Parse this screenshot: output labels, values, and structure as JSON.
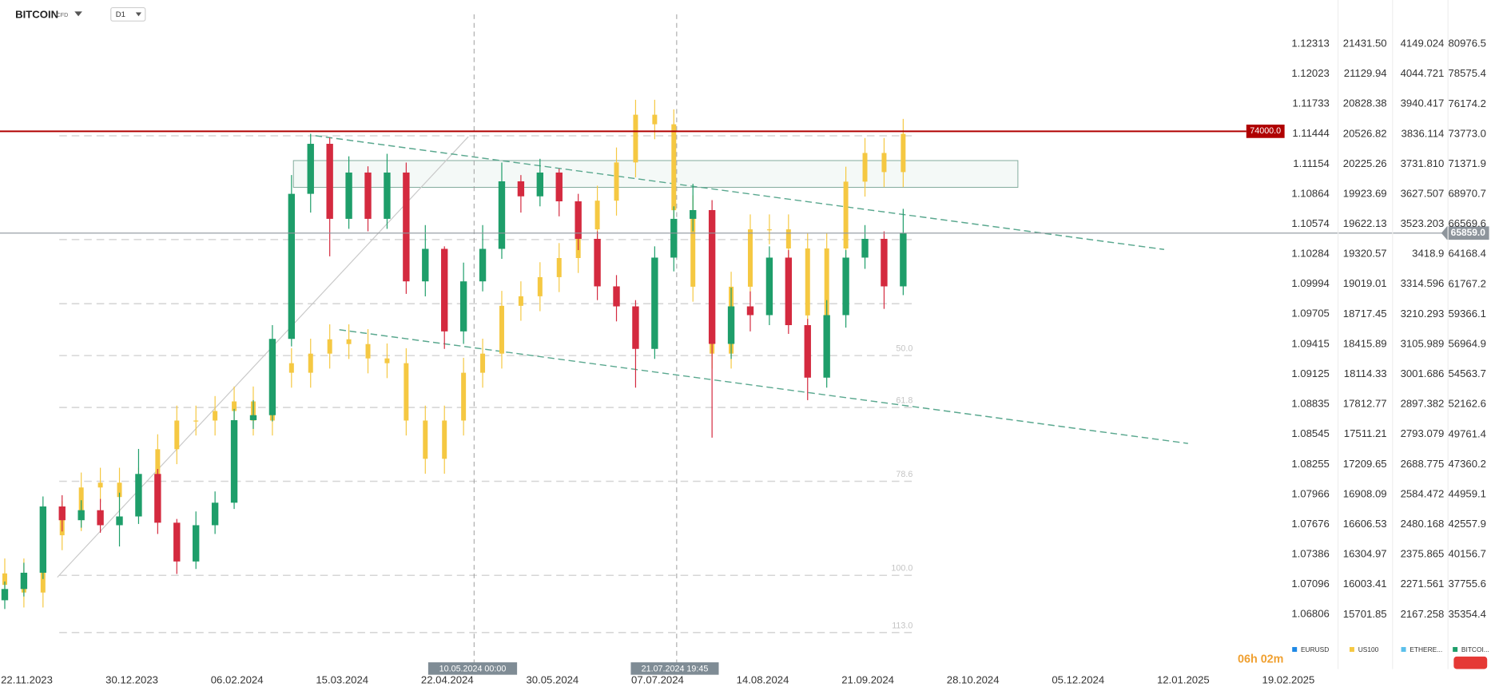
{
  "chart_data": {
    "type": "candlestick",
    "title": "BITCOIN",
    "instrument_type": "CFD",
    "interval": "D1",
    "countdown": "06h 02m",
    "xticks": [
      "22.11.2023",
      "30.12.2023",
      "06.02.2024",
      "15.03.2024",
      "22.04.2024",
      "30.05.2024",
      "07.07.2024",
      "14.08.2024",
      "21.09.2024",
      "28.10.2024",
      "05.12.2024",
      "12.01.2025",
      "19.02.2025"
    ],
    "crosshair_labels": [
      "10.05.2024 00:00",
      "21.07.2024 19:45"
    ],
    "y_axes": [
      {
        "name": "EURUSD",
        "color": "#1e88e5",
        "ylim": [
          1.0628,
          1.12737
        ],
        "yticks": [
          1.12313,
          1.12023,
          1.11733,
          1.11444,
          1.11154,
          1.10864,
          1.10574,
          1.10284,
          1.09994,
          1.09705,
          1.09415,
          1.09125,
          1.08835,
          1.08545,
          1.08255,
          1.07966,
          1.07676,
          1.07386,
          1.07096,
          1.06806
        ]
      },
      {
        "name": "US100",
        "color": "#f5c842",
        "ylim": [
          15155,
          21873
        ],
        "yticks": [
          {
            "value": 21431.5,
            "label": "21431.50"
          },
          21129.94,
          20828.38,
          20526.82,
          20225.26,
          19923.69,
          19622.13,
          19320.57,
          19019.01,
          18717.45,
          18415.89,
          18114.33,
          17812.77,
          17511.21,
          17209.65,
          16908.09,
          16606.53,
          16304.97,
          16003.41,
          15701.85
        ]
      },
      {
        "name": "ETHERE...",
        "color": "#5bc0eb",
        "ylim": [
          1978.1,
          4301.7
        ],
        "yticks": [
          4149.024,
          4044.721,
          3940.417,
          3836.114,
          {
            "value": 3731.81,
            "label": "3731.810"
          },
          3627.507,
          3523.203,
          3418.9,
          3314.596,
          3210.293,
          3105.989,
          3001.686,
          2897.382,
          2793.079,
          2688.775,
          2584.472,
          2480.168,
          2375.865,
          2271.561,
          2167.258
        ]
      },
      {
        "name": "BITCOI...",
        "color": "#1e9e6a",
        "ylim": [
          31000,
          84500
        ],
        "yticks": [
          80976.5,
          78575.4,
          76174.2,
          {
            "value": 73773,
            "label": "73773.0"
          },
          71371.9,
          68970.7,
          66569.6,
          64168.4,
          61767.2,
          59366.1,
          56964.9,
          54563.7,
          52162.6,
          49761.4,
          47360.2,
          44959.1,
          42557.9,
          40156.7,
          37755.6,
          35354.4
        ]
      }
    ],
    "series": [
      {
        "axis": 1,
        "color": "#f5c842",
        "open": [
          16000,
          16115,
          15923,
          16498,
          16690,
          16978,
          17026,
          16882,
          17026,
          17362,
          17650,
          17650,
          17746,
          17842,
          17650,
          18226,
          18130,
          18322,
          18466,
          18418,
          18274,
          18226,
          17650,
          17266,
          17650,
          18130,
          18322,
          18802,
          18898,
          19090,
          19282,
          19570,
          19858,
          20242,
          20721,
          20625,
          19762,
          18994,
          18322,
          18994,
          19570,
          19570,
          19378,
          18706,
          19378,
          20049,
          20337,
          20145
        ],
        "high": [
          16265,
          16265,
          16648,
          16840,
          17128,
          17176,
          17176,
          17176,
          17512,
          17800,
          17800,
          17896,
          17992,
          17992,
          18376,
          18376,
          18472,
          18616,
          18616,
          18568,
          18424,
          18376,
          17800,
          17800,
          18280,
          18472,
          18952,
          19048,
          19240,
          19432,
          19720,
          20008,
          20392,
          20871,
          20871,
          20775,
          19912,
          19144,
          19144,
          19720,
          19720,
          19720,
          19528,
          19528,
          20199,
          20487,
          20487,
          20679
        ],
        "low": [
          15850,
          15773,
          15773,
          16348,
          16540,
          16828,
          16732,
          16732,
          16876,
          17212,
          17500,
          17500,
          17596,
          17500,
          17500,
          17980,
          17980,
          18172,
          18268,
          18124,
          18076,
          17500,
          17116,
          17116,
          17500,
          17980,
          18172,
          18652,
          18748,
          18940,
          19132,
          19420,
          19708,
          20092,
          20475,
          19612,
          18844,
          18172,
          18172,
          18844,
          19420,
          19228,
          18556,
          18556,
          19228,
          19899,
          19995,
          19995
        ],
        "close": [
          16115,
          15923,
          16498,
          16690,
          16978,
          17026,
          16882,
          17026,
          17362,
          17650,
          17650,
          17746,
          17842,
          17650,
          18226,
          18130,
          18322,
          18466,
          18418,
          18274,
          18226,
          17650,
          17266,
          17650,
          18130,
          18322,
          18802,
          18898,
          19090,
          19282,
          19570,
          19858,
          20242,
          20721,
          20625,
          19762,
          18994,
          18322,
          18994,
          19570,
          19570,
          19378,
          18706,
          19378,
          20049,
          20337,
          20145,
          20529
        ]
      },
      {
        "axis": 3,
        "up_color": "#1e9e6a",
        "down_color": "#d42a3f",
        "open": [
          36500,
          37400,
          38700,
          44000,
          42900,
          43700,
          42500,
          43200,
          46600,
          42700,
          39600,
          42500,
          44300,
          50900,
          51300,
          57400,
          69000,
          73000,
          67000,
          70700,
          67000,
          70700,
          62000,
          64600,
          58000,
          62000,
          64600,
          70000,
          68800,
          70700,
          68400,
          65400,
          61600,
          60000,
          56600,
          63900,
          67000,
          67700,
          57000,
          60000,
          59300,
          63900,
          58500,
          54300,
          59300,
          63900,
          65400,
          61600
        ],
        "high": [
          38000,
          39500,
          44800,
          44900,
          44500,
          44600,
          45100,
          48600,
          47000,
          43000,
          43600,
          45200,
          51800,
          52500,
          58500,
          70500,
          73800,
          73500,
          72000,
          71200,
          72200,
          71500,
          66500,
          64800,
          63500,
          66500,
          71500,
          70500,
          71800,
          71000,
          69000,
          66000,
          62500,
          60500,
          64800,
          68000,
          69800,
          68500,
          61500,
          61200,
          64800,
          64500,
          59000,
          60500,
          64500,
          66500,
          66000,
          67800
        ],
        "low": [
          35800,
          36800,
          38200,
          42000,
          42300,
          41900,
          40800,
          42600,
          41800,
          38600,
          39000,
          41800,
          43800,
          50200,
          50800,
          56800,
          67500,
          64000,
          66200,
          66000,
          66200,
          61000,
          60800,
          56600,
          57000,
          61200,
          63800,
          67500,
          68000,
          67200,
          64500,
          60500,
          58800,
          53500,
          55800,
          62800,
          66000,
          49500,
          55800,
          58000,
          58500,
          57800,
          52500,
          53500,
          58300,
          63000,
          59800,
          60900
        ],
        "close": [
          37400,
          38700,
          44000,
          42900,
          43700,
          42500,
          43200,
          46600,
          42700,
          39600,
          42500,
          44300,
          50900,
          51300,
          57400,
          69000,
          73000,
          67000,
          70700,
          67000,
          70700,
          62000,
          64600,
          58000,
          62000,
          64600,
          70000,
          68800,
          70700,
          68400,
          65400,
          61600,
          60000,
          56600,
          63900,
          67000,
          67700,
          57000,
          60000,
          59300,
          63900,
          58500,
          54300,
          59300,
          63900,
          65400,
          61600,
          65859
        ]
      }
    ],
    "price_lines": [
      {
        "value": 74000,
        "label": "74000.0",
        "color": "#b00000"
      },
      {
        "value": 65859,
        "label": "65859.0",
        "color": "#8e959c"
      }
    ],
    "fibonacci": {
      "high": 73640,
      "low": 38487,
      "levels": [
        0,
        23.6,
        38.2
      ],
      "labeled_levels": [
        {
          "value": 50,
          "label": "50.0"
        },
        61.8,
        78.6,
        {
          "value": 100,
          "label": "100.0"
        },
        {
          "value": 113,
          "label": "113.0"
        }
      ]
    }
  }
}
